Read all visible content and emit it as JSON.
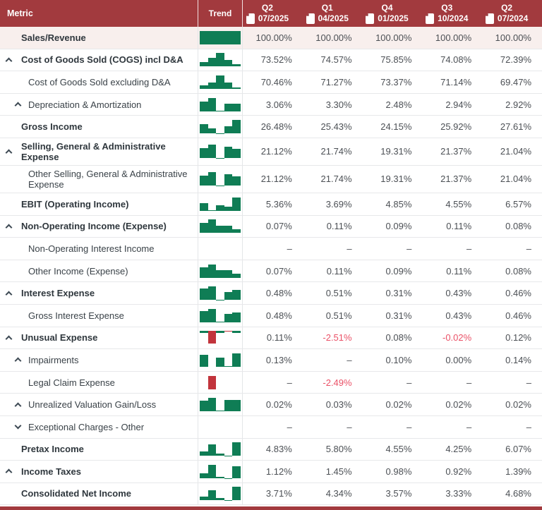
{
  "colors": {
    "header_bg": "#a23a3e",
    "accent_green": "#0f7d55",
    "accent_red": "#c2343c",
    "negative_text": "#ea5167",
    "highlight_row_bg": "#f8efed",
    "fold_red": "#8a2f33"
  },
  "header": {
    "metric_label": "Metric",
    "trend_label": "Trend",
    "quarters": [
      {
        "q": "Q2",
        "date": "07/2025",
        "icon": "document-icon"
      },
      {
        "q": "Q1",
        "date": "04/2025",
        "icon": "document-icon"
      },
      {
        "q": "Q4",
        "date": "01/2025",
        "icon": "document-icon"
      },
      {
        "q": "Q3",
        "date": "10/2024",
        "icon": "document-icon"
      },
      {
        "q": "Q2",
        "date": "07/2024",
        "icon": "document-icon"
      }
    ]
  },
  "chart_note": "Trend column shows mini bar charts (sparklines) of the five quarterly values, min-max scaled; green = positive, red = negative, blank = no data",
  "rows": [
    {
      "label": "Sales/Revenue",
      "bold": true,
      "level": 0,
      "caret": null,
      "highlight": true,
      "values": [
        "100.00%",
        "100.00%",
        "100.00%",
        "100.00%",
        "100.00%"
      ],
      "bars": [
        1,
        1,
        1,
        1,
        1
      ]
    },
    {
      "label": "Cost of Goods Sold (COGS) incl D&A",
      "bold": true,
      "level": 0,
      "caret": "up",
      "highlight": false,
      "values": [
        "73.52%",
        "74.57%",
        "75.85%",
        "74.08%",
        "72.39%"
      ],
      "bars": [
        0.35,
        0.65,
        1,
        0.5,
        0.18
      ]
    },
    {
      "label": "Cost of Goods Sold excluding D&A",
      "bold": false,
      "level": 1,
      "caret": null,
      "highlight": false,
      "values": [
        "70.46%",
        "71.27%",
        "73.37%",
        "71.14%",
        "69.47%"
      ],
      "bars": [
        0.28,
        0.48,
        1,
        0.45,
        0.12
      ]
    },
    {
      "label": "Depreciation & Amortization",
      "bold": false,
      "level": 1,
      "caret": "up",
      "highlight": false,
      "values": [
        "3.06%",
        "3.30%",
        "2.48%",
        "2.94%",
        "2.92%"
      ],
      "bars": [
        0.7,
        1,
        0.03,
        0.56,
        0.53
      ]
    },
    {
      "label": "Gross Income",
      "bold": true,
      "level": 0,
      "caret": null,
      "highlight": false,
      "values": [
        "26.48%",
        "25.43%",
        "24.15%",
        "25.92%",
        "27.61%"
      ],
      "bars": [
        0.67,
        0.37,
        0.03,
        0.51,
        1
      ]
    },
    {
      "label": "Selling, General & Administrative Expense",
      "bold": true,
      "level": 0,
      "caret": "up",
      "highlight": false,
      "values": [
        "21.12%",
        "21.74%",
        "19.31%",
        "21.37%",
        "21.04%"
      ],
      "bars": [
        0.74,
        1,
        0.03,
        0.85,
        0.71
      ]
    },
    {
      "label": "Other Selling, General & Administrative Expense",
      "bold": false,
      "level": 1,
      "caret": null,
      "highlight": false,
      "values": [
        "21.12%",
        "21.74%",
        "19.31%",
        "21.37%",
        "21.04%"
      ],
      "bars": [
        0.74,
        1,
        0.03,
        0.85,
        0.71
      ]
    },
    {
      "label": "EBIT (Operating Income)",
      "bold": true,
      "level": 0,
      "caret": null,
      "highlight": false,
      "values": [
        "5.36%",
        "3.69%",
        "4.85%",
        "4.55%",
        "6.57%"
      ],
      "bars": [
        0.58,
        0.03,
        0.4,
        0.3,
        1
      ]
    },
    {
      "label": "Non-Operating Income (Expense)",
      "bold": true,
      "level": 0,
      "caret": "up",
      "highlight": false,
      "values": [
        "0.07%",
        "0.11%",
        "0.09%",
        "0.11%",
        "0.08%"
      ],
      "bars": [
        0.75,
        1,
        0.55,
        0.55,
        0.3
      ]
    },
    {
      "label": "Non-Operating Interest Income",
      "bold": false,
      "level": 1,
      "caret": null,
      "highlight": false,
      "values": [
        "–",
        "–",
        "–",
        "–",
        "–"
      ],
      "bars": [
        null,
        null,
        null,
        null,
        null
      ]
    },
    {
      "label": "Other Income (Expense)",
      "bold": false,
      "level": 1,
      "caret": null,
      "highlight": false,
      "values": [
        "0.07%",
        "0.11%",
        "0.09%",
        "0.11%",
        "0.08%"
      ],
      "bars": [
        0.75,
        1,
        0.55,
        0.55,
        0.3
      ]
    },
    {
      "label": "Interest Expense",
      "bold": true,
      "level": 0,
      "caret": "up",
      "highlight": false,
      "values": [
        "0.48%",
        "0.51%",
        "0.31%",
        "0.43%",
        "0.46%"
      ],
      "bars": [
        0.85,
        1,
        0.03,
        0.6,
        0.72
      ]
    },
    {
      "label": "Gross Interest Expense",
      "bold": false,
      "level": 1,
      "caret": null,
      "highlight": false,
      "values": [
        "0.48%",
        "0.51%",
        "0.31%",
        "0.43%",
        "0.46%"
      ],
      "bars": [
        0.85,
        1,
        0.03,
        0.6,
        0.72
      ]
    },
    {
      "label": "Unusual Expense",
      "bold": true,
      "level": 0,
      "caret": "up",
      "highlight": false,
      "values": [
        "0.11%",
        "-2.51%",
        "0.08%",
        "-0.02%",
        "0.12%"
      ],
      "bars": [
        0.05,
        -0.95,
        0.04,
        -0.02,
        0.05
      ]
    },
    {
      "label": "Impairments",
      "bold": false,
      "level": 1,
      "caret": "up",
      "highlight": false,
      "values": [
        "0.13%",
        "–",
        "0.10%",
        "0.00%",
        "0.14%"
      ],
      "bars": [
        0.9,
        null,
        0.67,
        0.06,
        1
      ]
    },
    {
      "label": "Legal Claim Expense",
      "bold": false,
      "level": 1,
      "caret": null,
      "highlight": false,
      "values": [
        "–",
        "-2.49%",
        "–",
        "–",
        "–"
      ],
      "bars": [
        null,
        -1,
        null,
        null,
        null
      ]
    },
    {
      "label": "Unrealized Valuation Gain/Loss",
      "bold": false,
      "level": 1,
      "caret": "up",
      "highlight": false,
      "values": [
        "0.02%",
        "0.03%",
        "0.02%",
        "0.02%",
        "0.02%"
      ],
      "bars": [
        0.78,
        1,
        0.04,
        0.83,
        0.83
      ]
    },
    {
      "label": "Exceptional Charges - Other",
      "bold": false,
      "level": 1,
      "caret": "down",
      "highlight": false,
      "values": [
        "–",
        "–",
        "–",
        "–",
        "–"
      ],
      "bars": [
        null,
        null,
        null,
        null,
        null
      ]
    },
    {
      "label": "Pretax Income",
      "bold": true,
      "level": 0,
      "caret": null,
      "highlight": false,
      "values": [
        "4.83%",
        "5.80%",
        "4.55%",
        "4.25%",
        "6.07%"
      ],
      "bars": [
        0.33,
        0.85,
        0.17,
        0.02,
        1
      ]
    },
    {
      "label": "Income Taxes",
      "bold": true,
      "level": 0,
      "caret": "up",
      "highlight": false,
      "values": [
        "1.12%",
        "1.45%",
        "0.98%",
        "0.92%",
        "1.39%"
      ],
      "bars": [
        0.38,
        1,
        0.12,
        0.02,
        0.89
      ]
    },
    {
      "label": "Consolidated Net Income",
      "bold": true,
      "level": 0,
      "caret": null,
      "highlight": false,
      "values": [
        "3.71%",
        "4.34%",
        "3.57%",
        "3.33%",
        "4.68%"
      ],
      "bars": [
        0.28,
        0.75,
        0.18,
        0.02,
        1
      ]
    }
  ]
}
